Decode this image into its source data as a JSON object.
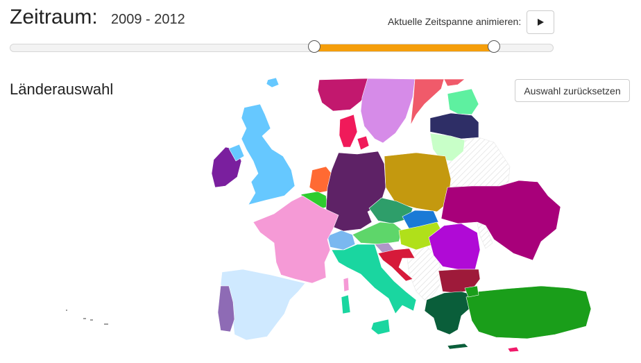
{
  "header": {
    "title": "Zeitraum:",
    "range_text": "2009 - 2012",
    "animate_label": "Aktuelle Zeitspanne animieren:",
    "play_icon": "play-icon"
  },
  "slider": {
    "start_fraction": 0.56,
    "end_fraction": 0.89,
    "fill_color": "#f59e0b"
  },
  "section": {
    "title": "Länderauswahl",
    "reset_label": "Auswahl zurücksetzen"
  },
  "map": {
    "unselected_pattern": "crosshatch",
    "countries": [
      {
        "name": "Ireland",
        "color": "#7a1f9e"
      },
      {
        "name": "United Kingdom",
        "color": "#66c8ff"
      },
      {
        "name": "France",
        "color": "#f59ad6"
      },
      {
        "name": "Spain",
        "color": "#cfe9ff"
      },
      {
        "name": "Portugal",
        "color": "#8e6bb5"
      },
      {
        "name": "Netherlands",
        "color": "#ff6a33"
      },
      {
        "name": "Belgium",
        "color": "#2ecc2e"
      },
      {
        "name": "Germany",
        "color": "#5e2266"
      },
      {
        "name": "Denmark",
        "color": "#f01a5a"
      },
      {
        "name": "Norway",
        "color": "#c2186e"
      },
      {
        "name": "Sweden",
        "color": "#d68be8"
      },
      {
        "name": "Finland",
        "color": "#f05a6a"
      },
      {
        "name": "Estonia",
        "color": "#5ef0a0"
      },
      {
        "name": "Latvia",
        "color": "#2e2e66"
      },
      {
        "name": "Lithuania",
        "color": "#c8ffc8"
      },
      {
        "name": "Poland",
        "color": "#c4990f"
      },
      {
        "name": "Czech Republic",
        "color": "#2e9e6a"
      },
      {
        "name": "Slovakia",
        "color": "#1a7ad6"
      },
      {
        "name": "Austria",
        "color": "#5ed66a"
      },
      {
        "name": "Hungary",
        "color": "#b0e01a"
      },
      {
        "name": "Switzerland",
        "color": "#7ab8f0"
      },
      {
        "name": "Italy",
        "color": "#1ad6a0"
      },
      {
        "name": "Slovenia",
        "color": "#b096c8"
      },
      {
        "name": "Croatia",
        "color": "#d61a3a"
      },
      {
        "name": "Romania",
        "color": "#b00ad6"
      },
      {
        "name": "Ukraine",
        "color": "#a8007a"
      },
      {
        "name": "Bulgaria",
        "color": "#9e1a3a"
      },
      {
        "name": "Greece",
        "color": "#0a5e3a"
      },
      {
        "name": "Turkey",
        "color": "#1a9e1a"
      },
      {
        "name": "Cyprus",
        "color": "#f01a6a"
      },
      {
        "name": "Iceland",
        "color": "#66c8ff"
      }
    ]
  }
}
